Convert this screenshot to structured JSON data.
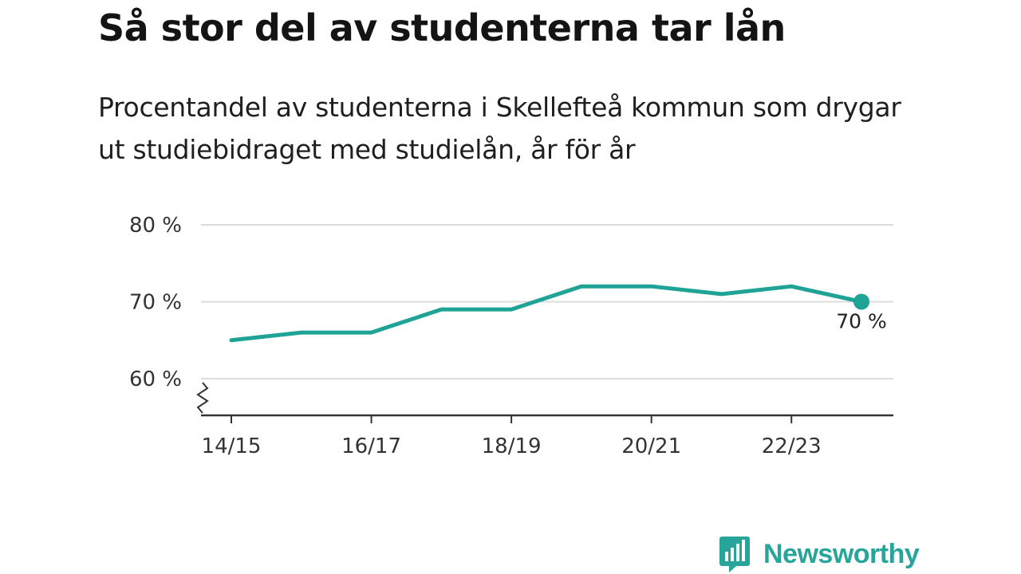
{
  "title": "Så stor del av studenterna tar lån",
  "subtitle": "Procentandel av studenterna i Skellefteå kommun som drygar ut studiebidraget med studielån, år för år",
  "brand": {
    "name": "Newsworthy",
    "color": "#27a59a",
    "icon": "newsworthy-logo-icon"
  },
  "chart_data": {
    "type": "line",
    "x": [
      "14/15",
      "15/16",
      "16/17",
      "17/18",
      "18/19",
      "19/20",
      "20/21",
      "21/22",
      "22/23",
      "23/24"
    ],
    "x_tick_labels": [
      "14/15",
      "16/17",
      "18/19",
      "20/21",
      "22/23"
    ],
    "series": [
      {
        "values": [
          65,
          66,
          66,
          69,
          69,
          72,
          72,
          71,
          72,
          70
        ],
        "color": "#1fa396"
      }
    ],
    "y_ticks": [
      60,
      70,
      80
    ],
    "y_tick_labels": [
      "60 %",
      "70 %",
      "80 %"
    ],
    "ylim": [
      55.3,
      80
    ],
    "y_axis_break": true,
    "grid": true,
    "last_value_label": "70 %"
  }
}
